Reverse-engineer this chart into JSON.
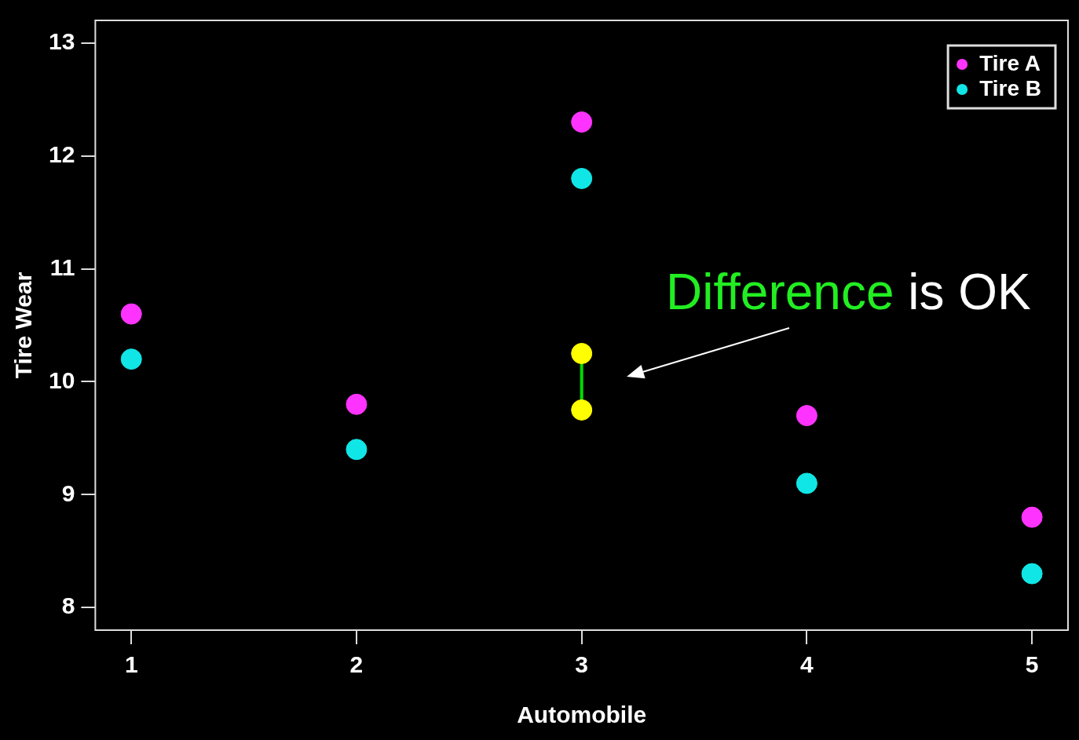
{
  "chart_data": {
    "type": "scatter",
    "xlabel": "Automobile",
    "ylabel": "Tire Wear",
    "x": [
      1,
      2,
      3,
      4,
      5
    ],
    "xlim": [
      0.84,
      5.16
    ],
    "xticks": [
      1,
      2,
      3,
      4,
      5
    ],
    "ylim": [
      7.8,
      13.2
    ],
    "yticks": [
      8,
      9,
      10,
      11,
      12,
      13
    ],
    "grid": false,
    "legend": "top right",
    "marker": "circle",
    "series": [
      {
        "name": "Tire A",
        "color": "#ff33ff",
        "values": [
          10.6,
          9.8,
          12.3,
          9.7,
          8.8
        ]
      },
      {
        "name": "Tire B",
        "color": "#11e6e6",
        "values": [
          10.2,
          9.4,
          11.8,
          9.1,
          8.3
        ]
      },
      {
        "color": "#ffff00",
        "values": [
          null,
          null,
          10.25,
          null,
          null
        ],
        "errors": [
          null,
          null,
          [
            9.85,
            10.15
          ],
          null,
          null
        ]
      },
      {
        "color": "#ffff00",
        "values": [
          null,
          null,
          9.75,
          null,
          null
        ]
      }
    ],
    "annotations": [
      "Difference is OK"
    ]
  }
}
